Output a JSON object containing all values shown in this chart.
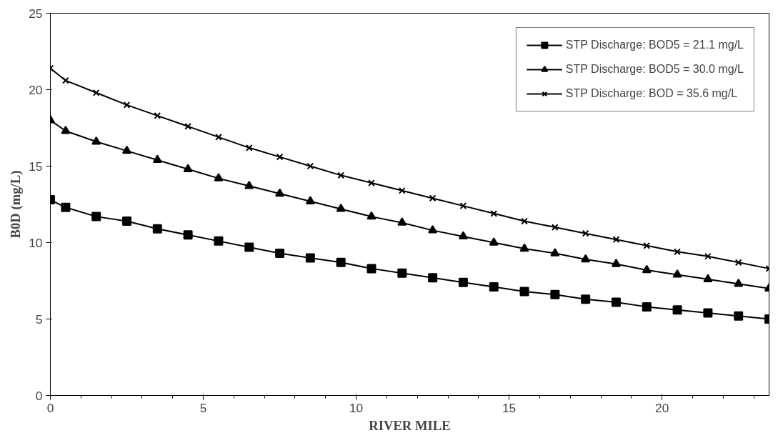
{
  "chart_data": {
    "type": "line",
    "xlabel": "RIVER MILE",
    "ylabel": "B0D (mg/L)",
    "x": [
      0,
      0.5,
      1.5,
      2.5,
      3.5,
      4.5,
      5.5,
      6.5,
      7.5,
      8.5,
      9.5,
      10.5,
      11.5,
      12.5,
      13.5,
      14.5,
      15.5,
      16.5,
      17.5,
      18.5,
      19.5,
      20.5,
      21.5,
      22.5,
      23.5
    ],
    "series": [
      {
        "name": "STP Discharge: BOD5 = 21.1 mg/L",
        "color": "#000000",
        "marker": "square",
        "values": [
          12.8,
          12.3,
          11.7,
          11.4,
          10.9,
          10.5,
          10.1,
          9.7,
          9.3,
          9.0,
          8.7,
          8.3,
          8.0,
          7.7,
          7.4,
          7.1,
          6.8,
          6.6,
          6.3,
          6.1,
          5.8,
          5.6,
          5.4,
          5.2,
          5.0
        ]
      },
      {
        "name": "STP Discharge: BOD5 = 30.0 mg/L",
        "color": "#000000",
        "marker": "triangle",
        "values": [
          18.0,
          17.3,
          16.6,
          16.0,
          15.4,
          14.8,
          14.2,
          13.7,
          13.2,
          12.7,
          12.2,
          11.7,
          11.3,
          10.8,
          10.4,
          10.0,
          9.6,
          9.3,
          8.9,
          8.6,
          8.2,
          7.9,
          7.6,
          7.3,
          7.0
        ]
      },
      {
        "name": "STP Discharge: BOD = 35.6 mg/L",
        "color": "#000000",
        "marker": "cross",
        "values": [
          21.4,
          20.6,
          19.8,
          19.0,
          18.3,
          17.6,
          16.9,
          16.2,
          15.6,
          15.0,
          14.4,
          13.9,
          13.4,
          12.9,
          12.4,
          11.9,
          11.4,
          11.0,
          10.6,
          10.2,
          9.8,
          9.4,
          9.1,
          8.7,
          8.3
        ]
      }
    ],
    "xlim": [
      0,
      23.5
    ],
    "xticks": [
      0,
      5,
      10,
      15,
      20
    ],
    "ylim": [
      0,
      25
    ],
    "yticks": [
      0,
      5,
      10,
      15,
      20,
      25
    ],
    "grid": false,
    "legend": "top right",
    "line_style": "solid"
  }
}
